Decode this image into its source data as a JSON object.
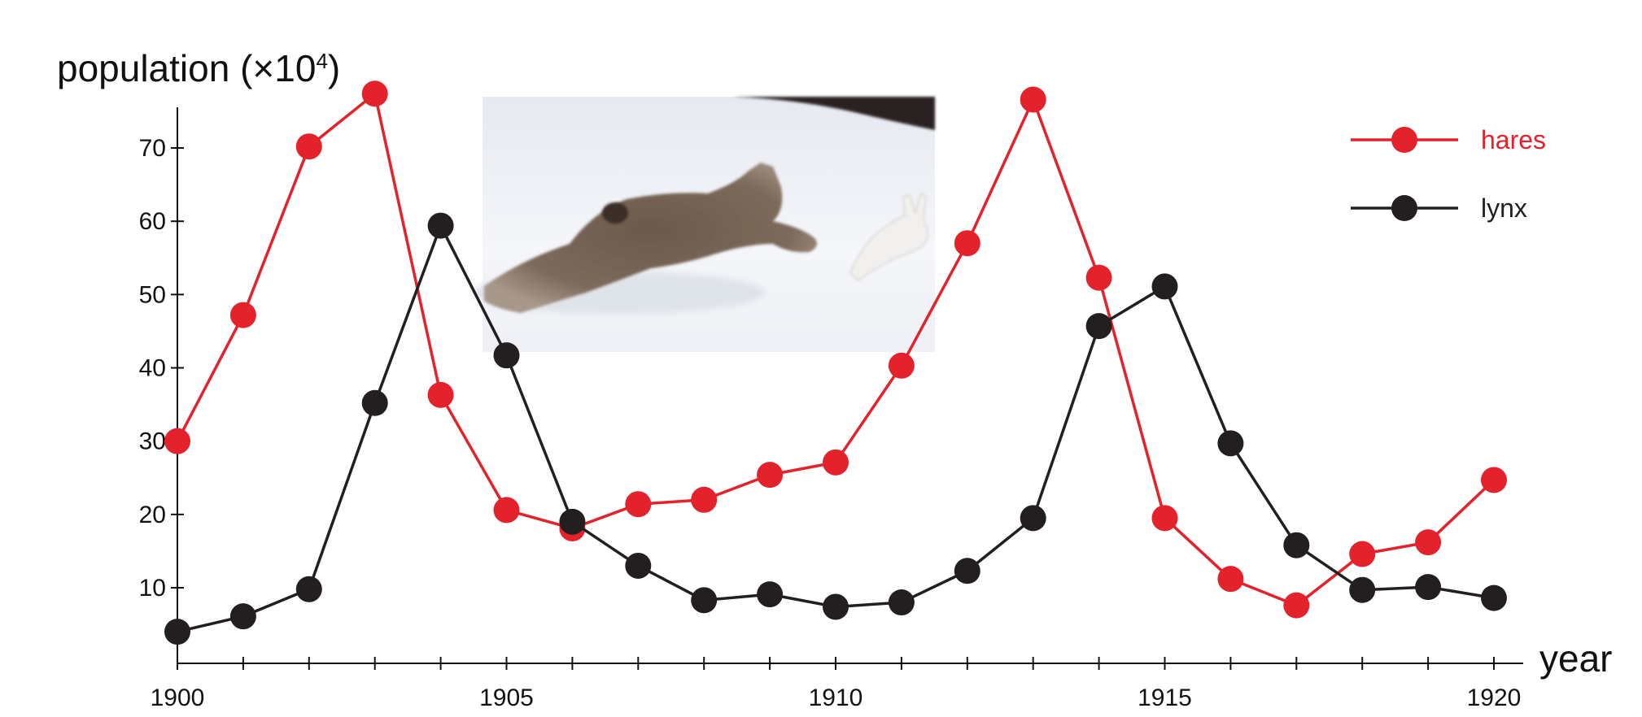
{
  "chart_data": {
    "type": "line",
    "ylabel": "population (×10",
    "ylabel_exponent": "4",
    "ylabel_close": ")",
    "xlabel": "year",
    "x": [
      1900,
      1901,
      1902,
      1903,
      1904,
      1905,
      1906,
      1907,
      1908,
      1909,
      1910,
      1911,
      1912,
      1913,
      1914,
      1915,
      1916,
      1917,
      1918,
      1919,
      1920
    ],
    "x_tick_labels": [
      "1900",
      "1905",
      "1910",
      "1915",
      "1920"
    ],
    "y_ticks": [
      10,
      20,
      30,
      40,
      50,
      60,
      70
    ],
    "y_tick_labels": [
      "10",
      "20",
      "30",
      "40",
      "50",
      "60",
      "70"
    ],
    "xlim": [
      1900,
      1920
    ],
    "ylim": [
      0,
      77
    ],
    "grid": false,
    "legend_position": "top-right",
    "series": [
      {
        "name": "hares",
        "color": "#e3222b",
        "values": [
          30,
          47.2,
          70.2,
          77.4,
          36.3,
          20.6,
          18.1,
          21.4,
          22,
          25.4,
          27.1,
          40.3,
          57,
          76.6,
          52.3,
          19.5,
          11.2,
          7.6,
          14.6,
          16.2,
          24.7
        ]
      },
      {
        "name": "lynx",
        "color": "#231f20",
        "values": [
          4,
          6.1,
          9.8,
          35.2,
          59.4,
          41.7,
          19,
          13,
          8.3,
          9.1,
          7.4,
          8,
          12.3,
          19.5,
          45.7,
          51.1,
          29.7,
          15.8,
          9.7,
          10.1,
          8.6
        ]
      }
    ]
  },
  "photo": {
    "icon": "lynx-chasing-hare-photo"
  }
}
